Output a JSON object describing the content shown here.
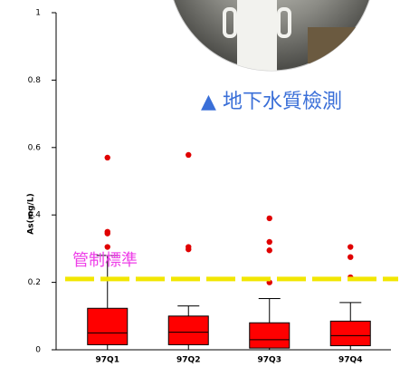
{
  "chart_data": {
    "type": "box",
    "y_label": "As(mg/L)",
    "categories": [
      "97Q1",
      "97Q2",
      "97Q3",
      "97Q4"
    ],
    "color": "#ff0000",
    "outlier_color": "#e00000",
    "boxes": [
      {
        "min": 0,
        "q1": 0.015,
        "median": 0.05,
        "q3": 0.123,
        "max": 0.28,
        "outliers": [
          0.57,
          0.35,
          0.345,
          0.305
        ]
      },
      {
        "min": 0,
        "q1": 0.015,
        "median": 0.052,
        "q3": 0.1,
        "max": 0.13,
        "outliers": [
          0.578,
          0.305,
          0.298
        ]
      },
      {
        "min": 0,
        "q1": 0.005,
        "median": 0.03,
        "q3": 0.08,
        "max": 0.152,
        "outliers": [
          0.39,
          0.32,
          0.295,
          0.2
        ]
      },
      {
        "min": 0,
        "q1": 0.012,
        "median": 0.042,
        "q3": 0.085,
        "max": 0.14,
        "outliers": [
          0.305,
          0.275,
          0.215
        ]
      }
    ],
    "ylim": [
      0,
      1
    ],
    "yticks": [
      0,
      0.2,
      0.4,
      0.6,
      0.8,
      1
    ],
    "threshold": {
      "value": 0.21,
      "label": "管制標準",
      "color": "#f2e600"
    },
    "annotation": "▲ 地下水質檢測"
  }
}
